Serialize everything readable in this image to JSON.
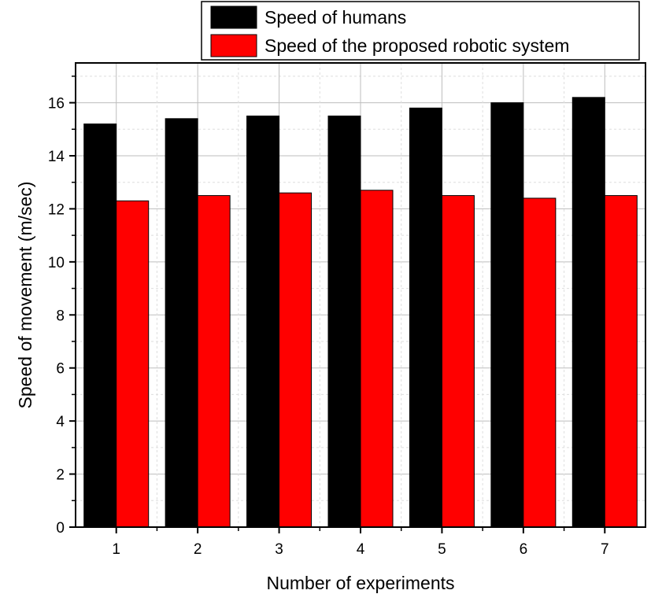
{
  "chart_data": {
    "type": "bar",
    "title": "",
    "xlabel": "Number of experiments",
    "ylabel": "Speed of movement (m/sec)",
    "categories": [
      "1",
      "2",
      "3",
      "4",
      "5",
      "6",
      "7"
    ],
    "ylim": [
      0,
      17.5
    ],
    "yticks": [
      0,
      2,
      4,
      6,
      8,
      10,
      12,
      14,
      16
    ],
    "yticks_labels": [
      "0",
      "2",
      "4",
      "6",
      "8",
      "10",
      "12",
      "14",
      "16"
    ],
    "grid": true,
    "legend_position": "top-right (outside above plot)",
    "series": [
      {
        "name": "Speed of humans",
        "color": "#000000",
        "values": [
          15.2,
          15.4,
          15.5,
          15.5,
          15.8,
          16.0,
          16.2
        ]
      },
      {
        "name": "Speed of the proposed robotic system",
        "color": "#ff0000",
        "values": [
          12.3,
          12.5,
          12.6,
          12.7,
          12.5,
          12.4,
          12.5
        ]
      }
    ]
  }
}
